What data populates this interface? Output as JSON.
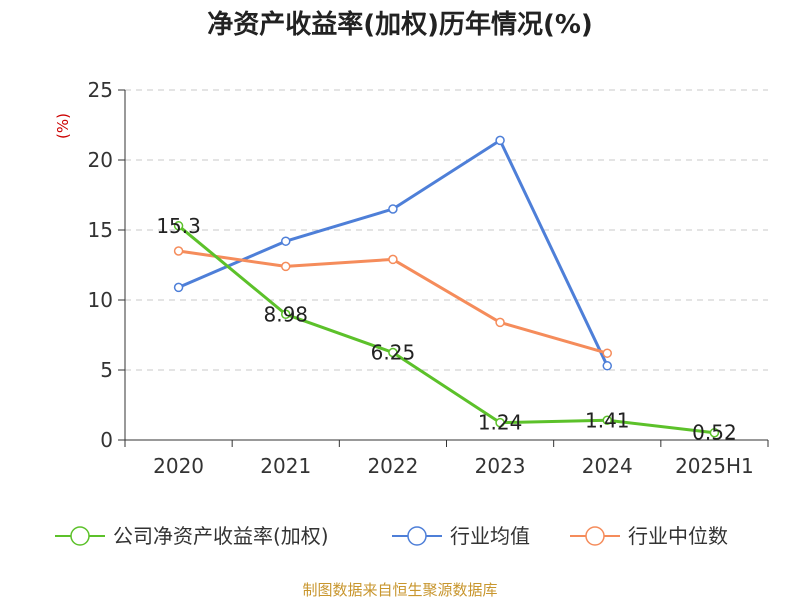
{
  "chart_data": {
    "type": "line",
    "title": "净资产收益率(加权)历年情况(%)",
    "ylabel": "(%)",
    "xlabel": "",
    "categories": [
      "2020",
      "2021",
      "2022",
      "2023",
      "2024",
      "2025H1"
    ],
    "ylim": [
      0,
      25
    ],
    "yticks": [
      0,
      5,
      10,
      15,
      20,
      25
    ],
    "grid": true,
    "legend_position": "bottom",
    "series": [
      {
        "name": "公司净资产收益率(加权)",
        "color": "#5cc12a",
        "values": [
          15.3,
          8.98,
          6.25,
          1.24,
          1.41,
          0.52
        ],
        "labels": [
          "15.3",
          "8.98",
          "6.25",
          "1.24",
          "1.41",
          "0.52"
        ]
      },
      {
        "name": "行业均值",
        "color": "#4e7fd8",
        "values": [
          10.9,
          14.2,
          16.5,
          21.4,
          5.3,
          null
        ]
      },
      {
        "name": "行业中位数",
        "color": "#f58c5b",
        "values": [
          13.5,
          12.4,
          12.9,
          8.4,
          6.2,
          null
        ]
      }
    ],
    "source": "制图数据来自恒生聚源数据库"
  }
}
